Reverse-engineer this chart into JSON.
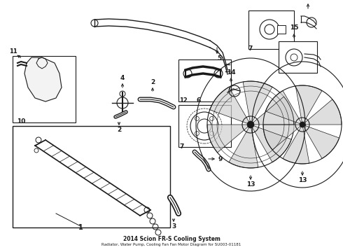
{
  "title": "2014 Scion FR-S Cooling System",
  "subtitle": "Radiator, Water Pump, Cooling Fan Fan Motor Diagram for SU003-01181",
  "background_color": "#ffffff",
  "line_color": "#1a1a1a",
  "figsize": [
    4.9,
    3.6
  ],
  "dpi": 100
}
